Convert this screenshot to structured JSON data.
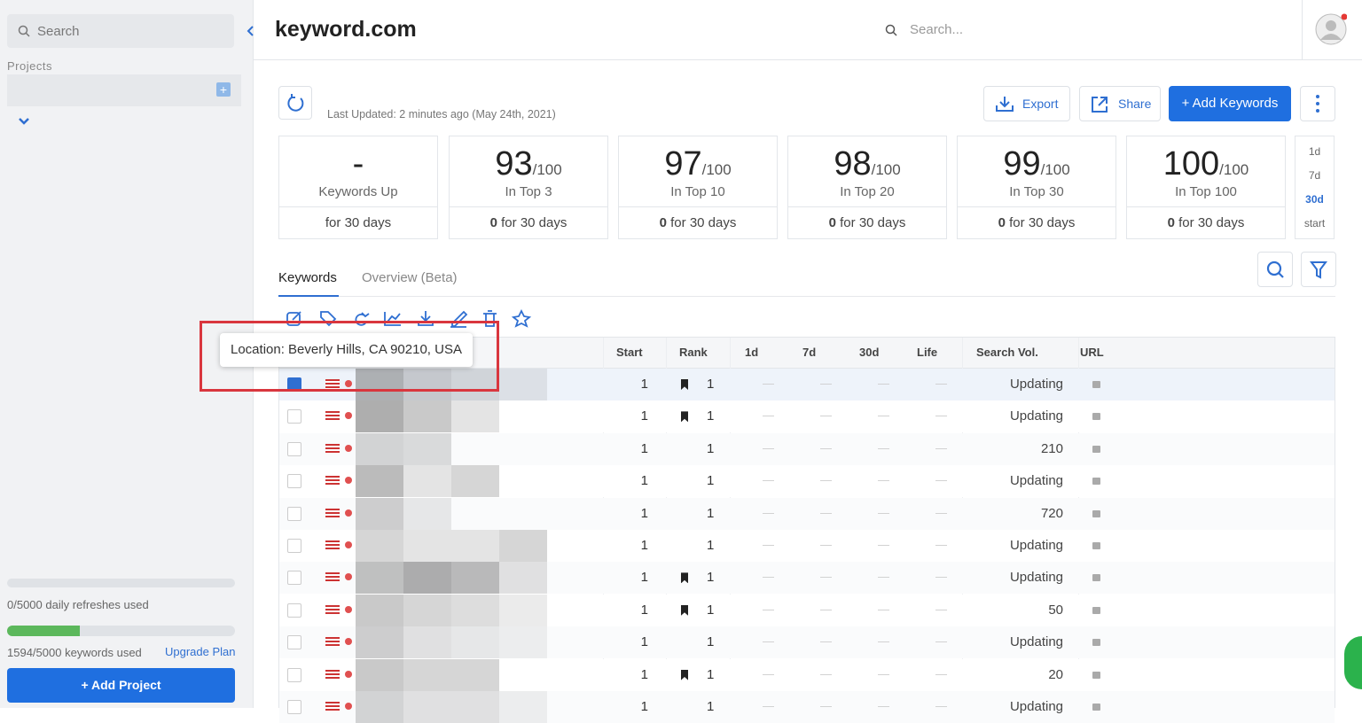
{
  "sidebar": {
    "search_placeholder": "Search",
    "projects_label": "Projects",
    "refreshes": "0/5000 daily refreshes used",
    "keywords_used": "1594/5000 keywords used",
    "upgrade": "Upgrade Plan",
    "add_project": "+ Add Project"
  },
  "header": {
    "logo": "keyword.com",
    "search_placeholder": "Search..."
  },
  "toolbar": {
    "last_updated": "Last Updated: 2 minutes ago (May 24th, 2021)",
    "export": "Export",
    "share": "Share",
    "add_keywords": "+ Add Keywords"
  },
  "stats": [
    {
      "value": "-",
      "label": "Keywords Up",
      "footer": "for 30 days"
    },
    {
      "value": 93,
      "max": "/100",
      "label": "In Top 3",
      "change": 0,
      "footer": "for 30 days"
    },
    {
      "value": 97,
      "max": "/100",
      "label": "In Top 10",
      "change": 0,
      "footer": "for 30 days"
    },
    {
      "value": 98,
      "max": "/100",
      "label": "In Top 20",
      "change": 0,
      "footer": "for 30 days"
    },
    {
      "value": 99,
      "max": "/100",
      "label": "In Top 30",
      "change": 0,
      "footer": "for 30 days"
    },
    {
      "value": 100,
      "max": "/100",
      "label": "In Top 100",
      "change": 0,
      "footer": "for 30 days"
    }
  ],
  "periods": [
    "1d",
    "7d",
    "30d",
    "start"
  ],
  "active_period": 2,
  "tabs": [
    "Keywords",
    "Overview (Beta)"
  ],
  "tooltip": "Location: Beverly Hills, CA 90210, USA",
  "table": {
    "columns": [
      "Start",
      "Rank",
      "1d",
      "7d",
      "30d",
      "Life",
      "Search Vol.",
      "URL"
    ],
    "empty_cell": "—",
    "rows": [
      {
        "checked": true,
        "start": 1,
        "rank": 1,
        "featured": true,
        "search_vol": "Updating"
      },
      {
        "checked": false,
        "start": 1,
        "rank": 1,
        "featured": true,
        "search_vol": "Updating"
      },
      {
        "checked": false,
        "start": 1,
        "rank": 1,
        "featured": false,
        "search_vol": 210
      },
      {
        "checked": false,
        "start": 1,
        "rank": 1,
        "featured": false,
        "search_vol": "Updating"
      },
      {
        "checked": false,
        "start": 1,
        "rank": 1,
        "featured": false,
        "search_vol": 720
      },
      {
        "checked": false,
        "start": 1,
        "rank": 1,
        "featured": false,
        "search_vol": "Updating"
      },
      {
        "checked": false,
        "start": 1,
        "rank": 1,
        "featured": true,
        "search_vol": "Updating"
      },
      {
        "checked": false,
        "start": 1,
        "rank": 1,
        "featured": true,
        "search_vol": 50
      },
      {
        "checked": false,
        "start": 1,
        "rank": 1,
        "featured": false,
        "search_vol": "Updating"
      },
      {
        "checked": false,
        "start": 1,
        "rank": 1,
        "featured": true,
        "search_vol": 20
      },
      {
        "checked": false,
        "start": 1,
        "rank": 1,
        "featured": false,
        "search_vol": "Updating"
      }
    ]
  }
}
